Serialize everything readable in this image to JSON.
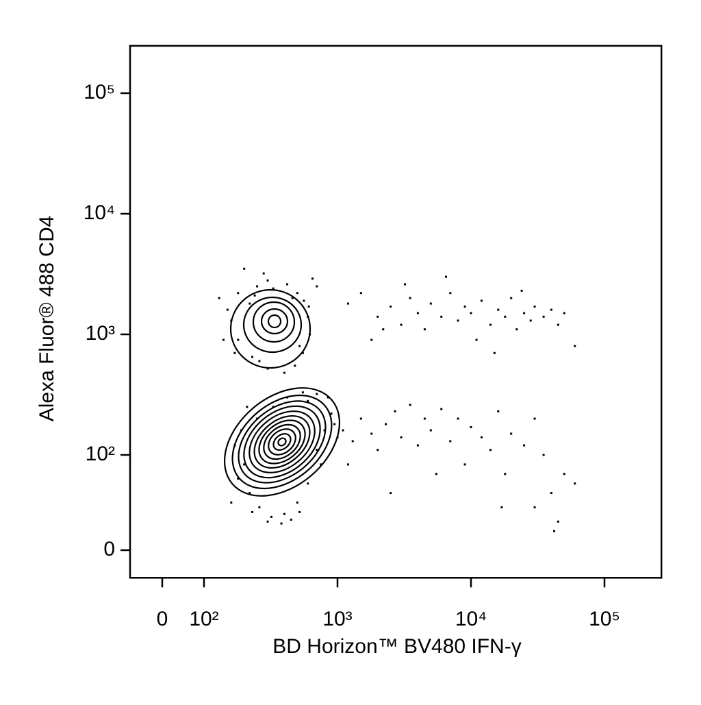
{
  "chart_data": {
    "type": "scatter",
    "xlabel": "BD Horizon™ BV480 IFN-γ",
    "ylabel": "Alexa Fluor® 488  CD4",
    "xscale": "biexponential",
    "yscale": "biexponential",
    "color": "#000000",
    "xlim": [
      -77,
      267000
    ],
    "ylim": [
      -29,
      247000
    ],
    "xticks": [
      0,
      {
        "value": 100,
        "label": "10²"
      },
      {
        "value": 1000,
        "label": "10³"
      },
      {
        "value": 10000,
        "label": "10⁴"
      },
      {
        "value": 100000,
        "label": "10⁵"
      }
    ],
    "yticks": [
      0,
      {
        "value": 100,
        "label": "10²"
      },
      {
        "value": 1000,
        "label": "10³"
      },
      {
        "value": 10000,
        "label": "10⁴"
      },
      {
        "value": 100000,
        "label": "10⁵"
      }
    ],
    "x": [
      180,
      220,
      250,
      300,
      420,
      500,
      560,
      600,
      620,
      550,
      480,
      400,
      300,
      230,
      180,
      160,
      200,
      280,
      650,
      700,
      150,
      170,
      260,
      520,
      610,
      240,
      330,
      460,
      130,
      140,
      200,
      220,
      260,
      320,
      400,
      500,
      600,
      700,
      800,
      900,
      850,
      700,
      550,
      420,
      330,
      250,
      190,
      170,
      180,
      300,
      450,
      230,
      600,
      950,
      1000,
      750,
      160,
      210,
      380,
      520,
      1200,
      1500,
      2000,
      2500,
      3000,
      3500,
      4000,
      4500,
      5000,
      6000,
      7000,
      8000,
      9000,
      10000,
      12000,
      14000,
      16000,
      18000,
      20000,
      22000,
      25000,
      28000,
      30000,
      35000,
      40000,
      45000,
      50000,
      60000,
      1800,
      3200,
      6500,
      11000,
      24000,
      15000,
      2200,
      1100,
      1300,
      1500,
      1800,
      2000,
      2300,
      2700,
      3000,
      3500,
      4000,
      4500,
      5000,
      6000,
      7000,
      8000,
      9000,
      10000,
      12000,
      14000,
      16000,
      18000,
      20000,
      25000,
      30000,
      35000,
      40000,
      45000,
      50000,
      60000,
      2500,
      5500,
      17000,
      30000,
      42000,
      1200
    ],
    "values": [
      2200,
      1800,
      2500,
      2800,
      2600,
      2200,
      1900,
      1400,
      1000,
      700,
      550,
      480,
      520,
      650,
      900,
      1300,
      3500,
      3200,
      2900,
      2500,
      1600,
      700,
      600,
      800,
      1700,
      2100,
      2400,
      2000,
      2000,
      900,
      90,
      60,
      45,
      35,
      38,
      50,
      70,
      110,
      160,
      220,
      300,
      320,
      330,
      300,
      250,
      200,
      160,
      120,
      75,
      30,
      32,
      40,
      280,
      180,
      140,
      90,
      50,
      250,
      28,
      40,
      1800,
      2200,
      1400,
      1700,
      1200,
      2000,
      1500,
      1100,
      1800,
      1400,
      2200,
      1300,
      1700,
      1500,
      1900,
      1200,
      1600,
      1400,
      2000,
      1100,
      1500,
      1300,
      1700,
      1400,
      1600,
      1200,
      1500,
      800,
      900,
      2600,
      3000,
      900,
      2300,
      700,
      1100,
      160,
      130,
      200,
      150,
      110,
      180,
      230,
      140,
      260,
      120,
      200,
      160,
      240,
      130,
      200,
      90,
      170,
      140,
      110,
      230,
      80,
      150,
      120,
      200,
      100,
      60,
      30,
      80,
      70,
      60,
      80,
      45,
      45,
      20,
      90
    ]
  }
}
